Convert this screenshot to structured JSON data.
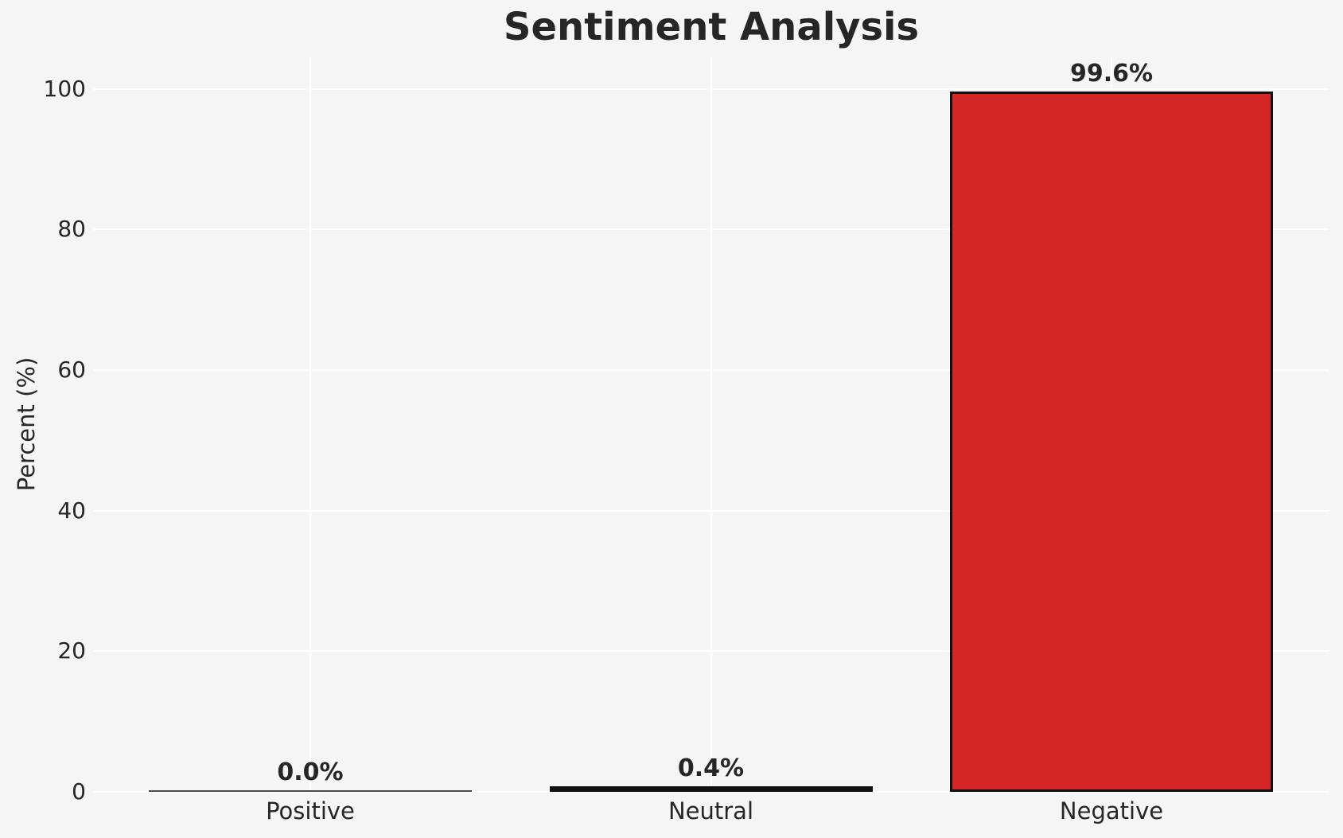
{
  "chart_data": {
    "type": "bar",
    "title": "Sentiment Analysis",
    "xlabel": "",
    "ylabel": "Percent (%)",
    "categories": [
      "Positive",
      "Neutral",
      "Negative"
    ],
    "values": [
      0.0,
      0.4,
      99.6
    ],
    "value_labels": [
      "0.0%",
      "0.4%",
      "99.6%"
    ],
    "yticks": [
      0,
      20,
      40,
      60,
      80,
      100
    ],
    "ylim": [
      0,
      104.5
    ],
    "grid": "on",
    "legend": "none",
    "colors": {
      "bar_fill": "#d62728",
      "bar_edge": "#111111",
      "background": "#f5f5f6",
      "gridline": "#ffffff",
      "text": "#262626"
    }
  }
}
